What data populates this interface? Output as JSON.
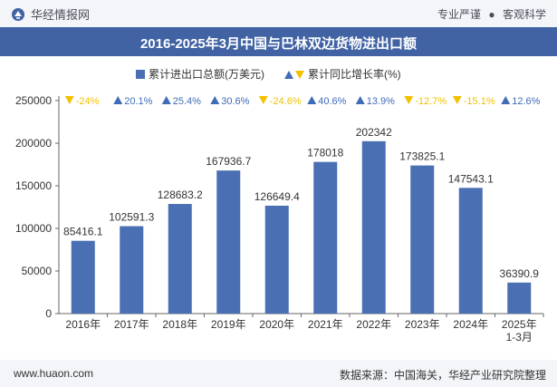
{
  "header": {
    "brand": "华经情报网",
    "tag1": "专业严谨",
    "separator": "●",
    "tag2": "客观科学"
  },
  "title": "2016-2025年3月中国与巴林双边货物进出口额",
  "footer": {
    "website": "www.huaon.com",
    "source": "数据来源：中国海关，华经产业研究院整理"
  },
  "colors": {
    "bar": "#4a6fb3",
    "up": "#3f6cb7",
    "down": "#f2c200",
    "title_bg": "#4163a4"
  },
  "chart_data": {
    "type": "bar",
    "categories": [
      "2016年",
      "2017年",
      "2018年",
      "2019年",
      "2020年",
      "2021年",
      "2022年",
      "2023年",
      "2024年",
      "2025年\n1-3月"
    ],
    "series": [
      {
        "name": "累计进出口总额(万美元)",
        "values": [
          85416.1,
          102591.3,
          128683.2,
          167936.7,
          126649.4,
          178018,
          202342,
          173825.1,
          147543.1,
          36390.9
        ]
      },
      {
        "name": "累计同比增长率(%)",
        "values": [
          -24,
          20.1,
          25.4,
          30.6,
          -24.6,
          40.6,
          13.9,
          -12.7,
          -15.1,
          12.6
        ]
      }
    ],
    "value_labels": [
      "85416.1",
      "102591.3",
      "128683.2",
      "167936.7",
      "126649.4",
      "178018",
      "202342",
      "173825.1",
      "147543.1",
      "36390.9"
    ],
    "growth_labels": [
      "-24%",
      "20.1%",
      "25.4%",
      "30.6%",
      "-24.6%",
      "40.6%",
      "13.9%",
      "-12.7%",
      "-15.1%",
      "12.6%"
    ],
    "yticks": [
      0,
      50000,
      100000,
      150000,
      200000,
      250000
    ],
    "ylim": [
      0,
      250000
    ],
    "legend": {
      "bar_label": "累计进出口总额(万美元)",
      "growth_label": "累计同比增长率(%)"
    }
  }
}
